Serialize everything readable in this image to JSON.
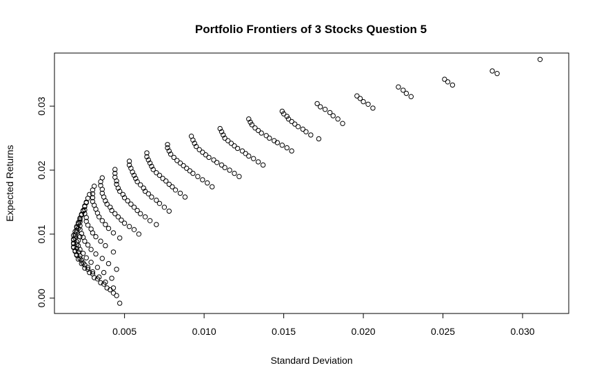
{
  "chart_data": {
    "type": "scatter",
    "title": "Portfolio Frontiers of 3 Stocks Question 5",
    "xlabel": "Standard Deviation",
    "ylabel": "Expected Returns",
    "xlim": [
      0.0006,
      0.0329
    ],
    "ylim": [
      -0.0024,
      0.0383
    ],
    "xticks": [
      0.005,
      0.01,
      0.015,
      0.02,
      0.025,
      0.03
    ],
    "xtick_labels": [
      "0.005",
      "0.010",
      "0.015",
      "0.020",
      "0.025",
      "0.030"
    ],
    "yticks": [
      0.0,
      0.01,
      0.02,
      0.03
    ],
    "ytick_labels": [
      "0.00",
      "0.01",
      "0.02",
      "0.03"
    ],
    "grid": false,
    "marker": "open-circle",
    "series": [
      {
        "points": [
          [
            0.0311,
            0.0373
          ]
        ]
      },
      {
        "points": [
          [
            0.0281,
            0.0355
          ],
          [
            0.0284,
            0.0351
          ]
        ]
      },
      {
        "points": [
          [
            0.0251,
            0.0342
          ],
          [
            0.0253,
            0.0338
          ],
          [
            0.0256,
            0.0333
          ]
        ]
      },
      {
        "points": [
          [
            0.0222,
            0.033
          ],
          [
            0.0225,
            0.0325
          ],
          [
            0.0227,
            0.032
          ],
          [
            0.023,
            0.0315
          ]
        ]
      },
      {
        "points": [
          [
            0.0196,
            0.0316
          ],
          [
            0.0198,
            0.0312
          ],
          [
            0.02,
            0.0307
          ],
          [
            0.0203,
            0.0303
          ],
          [
            0.0206,
            0.0297
          ]
        ]
      },
      {
        "points": [
          [
            0.0171,
            0.0304
          ],
          [
            0.0173,
            0.0299
          ],
          [
            0.0176,
            0.0295
          ],
          [
            0.0179,
            0.029
          ],
          [
            0.0181,
            0.0285
          ],
          [
            0.0184,
            0.028
          ],
          [
            0.0187,
            0.0273
          ]
        ]
      },
      {
        "points": [
          [
            0.0149,
            0.0292
          ],
          [
            0.015,
            0.0288
          ],
          [
            0.0152,
            0.0284
          ],
          [
            0.0153,
            0.028
          ],
          [
            0.0155,
            0.0276
          ],
          [
            0.0157,
            0.0272
          ],
          [
            0.0159,
            0.0268
          ],
          [
            0.0162,
            0.0264
          ],
          [
            0.0164,
            0.026
          ],
          [
            0.0167,
            0.0255
          ],
          [
            0.0172,
            0.0249
          ]
        ]
      },
      {
        "points": [
          [
            0.0128,
            0.028
          ],
          [
            0.0129,
            0.0275
          ],
          [
            0.013,
            0.0271
          ],
          [
            0.0132,
            0.0266
          ],
          [
            0.0134,
            0.0262
          ],
          [
            0.0136,
            0.0258
          ],
          [
            0.0139,
            0.0254
          ],
          [
            0.0141,
            0.025
          ],
          [
            0.0144,
            0.0246
          ],
          [
            0.0146,
            0.0243
          ],
          [
            0.0149,
            0.0239
          ],
          [
            0.0152,
            0.0235
          ],
          [
            0.0155,
            0.023
          ]
        ]
      },
      {
        "points": [
          [
            0.011,
            0.0265
          ],
          [
            0.0111,
            0.026
          ],
          [
            0.0112,
            0.0255
          ],
          [
            0.0113,
            0.025
          ],
          [
            0.0115,
            0.0246
          ],
          [
            0.0117,
            0.0242
          ],
          [
            0.0119,
            0.0238
          ],
          [
            0.0121,
            0.0234
          ],
          [
            0.0124,
            0.023
          ],
          [
            0.0126,
            0.0226
          ],
          [
            0.0128,
            0.0222
          ],
          [
            0.0131,
            0.0218
          ],
          [
            0.0134,
            0.0213
          ],
          [
            0.0137,
            0.0208
          ]
        ]
      },
      {
        "points": [
          [
            0.0092,
            0.0253
          ],
          [
            0.0093,
            0.0247
          ],
          [
            0.0094,
            0.0242
          ],
          [
            0.0095,
            0.0237
          ],
          [
            0.0097,
            0.0232
          ],
          [
            0.0099,
            0.0228
          ],
          [
            0.0101,
            0.0224
          ],
          [
            0.0103,
            0.022
          ],
          [
            0.0106,
            0.0216
          ],
          [
            0.0108,
            0.0212
          ],
          [
            0.0111,
            0.0208
          ],
          [
            0.0113,
            0.0204
          ],
          [
            0.0116,
            0.02
          ],
          [
            0.0119,
            0.0195
          ],
          [
            0.0122,
            0.019
          ]
        ]
      },
      {
        "points": [
          [
            0.0077,
            0.024
          ],
          [
            0.0077,
            0.0235
          ],
          [
            0.0078,
            0.023
          ],
          [
            0.0079,
            0.0225
          ],
          [
            0.0081,
            0.022
          ],
          [
            0.0083,
            0.0215
          ],
          [
            0.0085,
            0.0211
          ],
          [
            0.0087,
            0.0207
          ],
          [
            0.0089,
            0.0203
          ],
          [
            0.0091,
            0.0199
          ],
          [
            0.0093,
            0.0195
          ],
          [
            0.0096,
            0.019
          ],
          [
            0.0099,
            0.0185
          ],
          [
            0.0102,
            0.018
          ],
          [
            0.0105,
            0.0174
          ]
        ]
      },
      {
        "points": [
          [
            0.0064,
            0.0227
          ],
          [
            0.0064,
            0.0221
          ],
          [
            0.0065,
            0.0216
          ],
          [
            0.0066,
            0.0211
          ],
          [
            0.0067,
            0.0206
          ],
          [
            0.0068,
            0.0201
          ],
          [
            0.007,
            0.0196
          ],
          [
            0.0072,
            0.0192
          ],
          [
            0.0074,
            0.0187
          ],
          [
            0.0076,
            0.0183
          ],
          [
            0.0078,
            0.0178
          ],
          [
            0.008,
            0.0174
          ],
          [
            0.0082,
            0.0169
          ],
          [
            0.0085,
            0.0164
          ],
          [
            0.0088,
            0.0158
          ]
        ]
      },
      {
        "points": [
          [
            0.0053,
            0.0214
          ],
          [
            0.0053,
            0.0208
          ],
          [
            0.0054,
            0.0203
          ],
          [
            0.0055,
            0.0197
          ],
          [
            0.0056,
            0.0192
          ],
          [
            0.0057,
            0.0187
          ],
          [
            0.0058,
            0.0182
          ],
          [
            0.006,
            0.0177
          ],
          [
            0.0062,
            0.0172
          ],
          [
            0.0063,
            0.0167
          ],
          [
            0.0065,
            0.0163
          ],
          [
            0.0067,
            0.0158
          ],
          [
            0.007,
            0.0153
          ],
          [
            0.0072,
            0.0148
          ],
          [
            0.0075,
            0.0142
          ],
          [
            0.0078,
            0.0136
          ]
        ]
      },
      {
        "points": [
          [
            0.0044,
            0.0201
          ],
          [
            0.0044,
            0.0195
          ],
          [
            0.0044,
            0.0189
          ],
          [
            0.0045,
            0.0183
          ],
          [
            0.0045,
            0.0178
          ],
          [
            0.0046,
            0.0172
          ],
          [
            0.0047,
            0.0167
          ],
          [
            0.0049,
            0.0162
          ],
          [
            0.005,
            0.0157
          ],
          [
            0.0052,
            0.0152
          ],
          [
            0.0054,
            0.0147
          ],
          [
            0.0056,
            0.0142
          ],
          [
            0.0058,
            0.0137
          ],
          [
            0.006,
            0.0132
          ],
          [
            0.0063,
            0.0127
          ],
          [
            0.0066,
            0.0121
          ],
          [
            0.007,
            0.0115
          ]
        ]
      },
      {
        "points": [
          [
            0.0036,
            0.0188
          ],
          [
            0.0035,
            0.0182
          ],
          [
            0.0035,
            0.0176
          ],
          [
            0.0036,
            0.017
          ],
          [
            0.0036,
            0.0164
          ],
          [
            0.0037,
            0.0158
          ],
          [
            0.0038,
            0.0152
          ],
          [
            0.0039,
            0.0147
          ],
          [
            0.0041,
            0.0142
          ],
          [
            0.0042,
            0.0137
          ],
          [
            0.0044,
            0.0132
          ],
          [
            0.0046,
            0.0127
          ],
          [
            0.0048,
            0.0122
          ],
          [
            0.005,
            0.0117
          ],
          [
            0.0053,
            0.0112
          ],
          [
            0.0056,
            0.0107
          ],
          [
            0.0059,
            0.01
          ]
        ]
      },
      {
        "points": [
          [
            0.0031,
            0.0175
          ],
          [
            0.003,
            0.0169
          ],
          [
            0.003,
            0.0163
          ],
          [
            0.003,
            0.0157
          ],
          [
            0.003,
            0.0151
          ],
          [
            0.0031,
            0.0145
          ],
          [
            0.0032,
            0.0139
          ],
          [
            0.0033,
            0.0133
          ],
          [
            0.0034,
            0.0127
          ],
          [
            0.0036,
            0.0121
          ],
          [
            0.0038,
            0.0115
          ],
          [
            0.004,
            0.0109
          ],
          [
            0.0043,
            0.0102
          ],
          [
            0.0047,
            0.0094
          ]
        ]
      },
      {
        "points": [
          [
            0.0028,
            0.0162
          ],
          [
            0.0027,
            0.0156
          ],
          [
            0.0026,
            0.015
          ],
          [
            0.0025,
            0.0144
          ],
          [
            0.0025,
            0.0138
          ],
          [
            0.0025,
            0.0132
          ],
          [
            0.0026,
            0.0126
          ],
          [
            0.0026,
            0.012
          ],
          [
            0.0027,
            0.0114
          ],
          [
            0.0029,
            0.0108
          ],
          [
            0.003,
            0.0102
          ],
          [
            0.0032,
            0.0096
          ],
          [
            0.0035,
            0.0089
          ],
          [
            0.0038,
            0.0082
          ],
          [
            0.0043,
            0.0072
          ]
        ]
      },
      {
        "points": [
          [
            0.0026,
            0.0149
          ],
          [
            0.0025,
            0.0143
          ],
          [
            0.0024,
            0.0137
          ],
          [
            0.0023,
            0.0131
          ],
          [
            0.0022,
            0.0125
          ],
          [
            0.0022,
            0.0119
          ],
          [
            0.0022,
            0.0113
          ],
          [
            0.0022,
            0.0107
          ],
          [
            0.0023,
            0.0101
          ],
          [
            0.0024,
            0.0095
          ],
          [
            0.0025,
            0.0089
          ],
          [
            0.0027,
            0.0083
          ],
          [
            0.0029,
            0.0076
          ],
          [
            0.0032,
            0.0069
          ],
          [
            0.0036,
            0.0062
          ],
          [
            0.004,
            0.0054
          ],
          [
            0.0045,
            0.0045
          ]
        ]
      },
      {
        "points": [
          [
            0.0024,
            0.0136
          ],
          [
            0.0023,
            0.013
          ],
          [
            0.0022,
            0.0124
          ],
          [
            0.0021,
            0.0118
          ],
          [
            0.002,
            0.0112
          ],
          [
            0.002,
            0.0106
          ],
          [
            0.0019,
            0.01
          ],
          [
            0.0019,
            0.0094
          ],
          [
            0.002,
            0.0088
          ],
          [
            0.0021,
            0.0082
          ],
          [
            0.0022,
            0.0076
          ],
          [
            0.0024,
            0.007
          ],
          [
            0.0026,
            0.0063
          ],
          [
            0.0029,
            0.0056
          ],
          [
            0.0033,
            0.0048
          ],
          [
            0.0037,
            0.004
          ],
          [
            0.0042,
            0.0031
          ]
        ]
      },
      {
        "points": [
          [
            0.0022,
            0.0122
          ],
          [
            0.0021,
            0.0116
          ],
          [
            0.002,
            0.011
          ],
          [
            0.0019,
            0.0104
          ],
          [
            0.0018,
            0.0098
          ],
          [
            0.0018,
            0.0092
          ],
          [
            0.0018,
            0.0086
          ],
          [
            0.0018,
            0.008
          ],
          [
            0.0019,
            0.0074
          ],
          [
            0.002,
            0.0068
          ],
          [
            0.0022,
            0.0062
          ],
          [
            0.0024,
            0.0055
          ],
          [
            0.0027,
            0.0048
          ],
          [
            0.003,
            0.0041
          ],
          [
            0.0034,
            0.0033
          ],
          [
            0.0038,
            0.0025
          ],
          [
            0.0043,
            0.0016
          ]
        ]
      },
      {
        "points": [
          [
            0.0021,
            0.0109
          ],
          [
            0.002,
            0.0103
          ],
          [
            0.0019,
            0.0097
          ],
          [
            0.0018,
            0.0091
          ],
          [
            0.0018,
            0.0085
          ],
          [
            0.0018,
            0.0079
          ],
          [
            0.0019,
            0.0073
          ],
          [
            0.002,
            0.0067
          ],
          [
            0.0021,
            0.0061
          ],
          [
            0.0023,
            0.0054
          ],
          [
            0.0025,
            0.0047
          ],
          [
            0.0028,
            0.004
          ],
          [
            0.0031,
            0.0032
          ],
          [
            0.0035,
            0.0024
          ],
          [
            0.0039,
            0.0016
          ],
          [
            0.0043,
            0.0008
          ],
          [
            0.0047,
            -0.0008
          ]
        ]
      },
      {
        "points": [
          [
            0.0022,
            0.0096
          ],
          [
            0.0021,
            0.009
          ],
          [
            0.002,
            0.0084
          ],
          [
            0.002,
            0.0078
          ],
          [
            0.0021,
            0.0072
          ],
          [
            0.0022,
            0.0066
          ],
          [
            0.0023,
            0.0059
          ],
          [
            0.0025,
            0.0052
          ],
          [
            0.0027,
            0.0045
          ],
          [
            0.003,
            0.0038
          ],
          [
            0.0033,
            0.003
          ],
          [
            0.0037,
            0.0022
          ],
          [
            0.0041,
            0.0013
          ],
          [
            0.0045,
            0.0004
          ]
        ]
      }
    ]
  }
}
